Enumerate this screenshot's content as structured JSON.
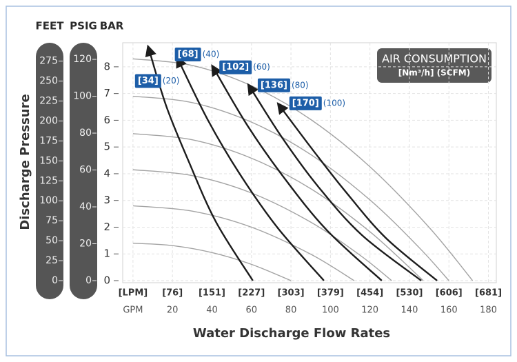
{
  "chart_data": {
    "type": "line",
    "ylabel": "Discharge Pressure",
    "xlabel": "Water Discharge Flow Rates",
    "legend_title": "AIR CONSUMPTION",
    "legend_subtitle": "[Nm³/h] (SCFM)",
    "column_headers": [
      "FEET",
      "PSIG",
      "BAR"
    ],
    "xlim": [
      -5.2,
      184
    ],
    "ylim": [
      0,
      8.9
    ],
    "yticks": [
      0,
      1,
      2,
      3,
      4,
      5,
      6,
      7,
      8
    ],
    "xticks": [
      {
        "value": 0,
        "label": "GPM"
      },
      20,
      40,
      60,
      80,
      100,
      120,
      140,
      160,
      180
    ],
    "xticks_lpm": [
      {
        "value": 0,
        "label": "[LPM]"
      },
      {
        "value": 20,
        "label": "[76]"
      },
      {
        "value": 40,
        "label": "[151]"
      },
      {
        "value": 60,
        "label": "[227]"
      },
      {
        "value": 80,
        "label": "[303]"
      },
      {
        "value": 100,
        "label": "[379]"
      },
      {
        "value": 120,
        "label": "[454]"
      },
      {
        "value": 140,
        "label": "[530]"
      },
      {
        "value": 160,
        "label": "[606]"
      },
      {
        "value": 180,
        "label": "[681]"
      }
    ],
    "feet_lim": [
      0,
      298
    ],
    "feet_ticks": [
      0,
      25,
      50,
      75,
      100,
      125,
      150,
      175,
      200,
      225,
      250,
      275
    ],
    "psig_lim": [
      0,
      129
    ],
    "psig_ticks": [
      0,
      20,
      40,
      60,
      80,
      100,
      120
    ],
    "grid": true,
    "head_color": "#a3a3a3",
    "air_color": "#1c1c1c",
    "label_color": "#1d5ea8",
    "head_curves": [
      {
        "x": [
          0,
          30,
          60,
          90,
          120,
          150,
          172
        ],
        "values": [
          8.3,
          8.05,
          7.29,
          6.03,
          4.26,
          1.99,
          0
        ]
      },
      {
        "x": [
          0,
          30,
          60,
          90,
          120,
          145,
          160
        ],
        "values": [
          6.9,
          6.66,
          5.93,
          4.72,
          3.02,
          1.23,
          0
        ]
      },
      {
        "x": [
          0,
          30,
          60,
          90,
          120,
          147
        ],
        "values": [
          5.5,
          5.27,
          4.58,
          3.44,
          1.83,
          0
        ]
      },
      {
        "x": [
          0,
          30,
          60,
          90,
          115,
          131
        ],
        "values": [
          4.15,
          3.93,
          3.28,
          2.19,
          0.95,
          0
        ]
      },
      {
        "x": [
          0,
          30,
          60,
          90,
          112
        ],
        "values": [
          2.8,
          2.6,
          2.0,
          0.99,
          0
        ]
      },
      {
        "x": [
          0,
          20,
          40,
          60,
          80
        ],
        "values": [
          1.4,
          1.31,
          1.05,
          0.61,
          0
        ]
      }
    ],
    "series": [
      {
        "name": "[34]",
        "scfm": "(20)",
        "x": [
          8.7,
          17,
          28,
          42,
          60.7
        ],
        "values": [
          8.5,
          6.5,
          4.5,
          2.2,
          0
        ]
      },
      {
        "name": "[68]",
        "scfm": "(40)",
        "x": [
          24,
          38,
          54,
          73,
          96.7
        ],
        "values": [
          8.1,
          6,
          4,
          2,
          0
        ]
      },
      {
        "name": "[102]",
        "scfm": "(60)",
        "x": [
          42,
          58,
          76,
          98,
          126
        ],
        "values": [
          7.8,
          5.8,
          3.9,
          1.9,
          0
        ]
      },
      {
        "name": "[136]",
        "scfm": "(80)",
        "x": [
          60.4,
          76,
          94,
          116,
          146
        ],
        "values": [
          7.1,
          5.3,
          3.5,
          1.7,
          0
        ]
      },
      {
        "name": "[170]",
        "scfm": "(100)",
        "x": [
          75.7,
          92,
          108,
          128,
          154
        ],
        "values": [
          6.4,
          4.8,
          3.3,
          1.6,
          0
        ]
      }
    ]
  }
}
